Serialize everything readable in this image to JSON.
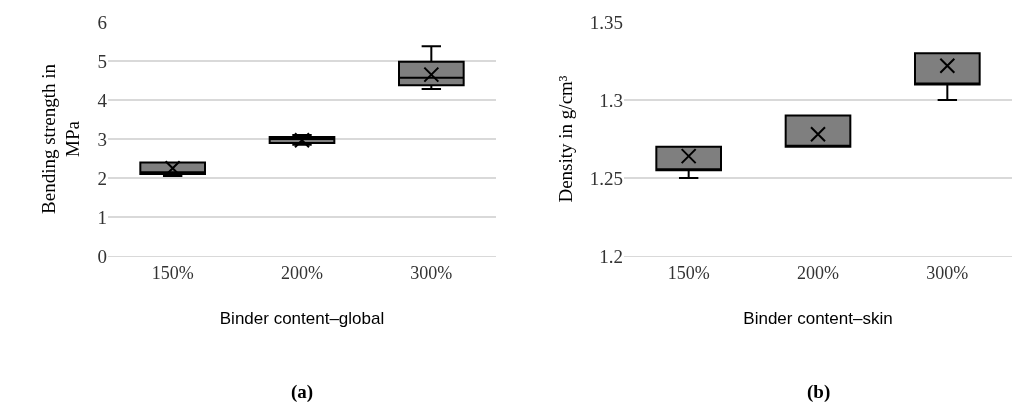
{
  "chart_data": [
    {
      "type": "box",
      "ylabel": "Bending strength in MPa",
      "xlabel": "Binder content–global",
      "categories": [
        "150%",
        "200%",
        "300%"
      ],
      "ylim": [
        0,
        6
      ],
      "yticks": [
        0,
        1,
        2,
        3,
        4,
        5,
        6
      ],
      "grid": "y",
      "color": "#7f7f7f",
      "marker": "cross",
      "boxes": [
        {
          "low": 2.05,
          "q1": 2.1,
          "median": 2.15,
          "q3": 2.4,
          "high": 2.4,
          "mean": 2.25
        },
        {
          "low": 2.85,
          "q1": 2.9,
          "median": 3.0,
          "q3": 3.05,
          "high": 3.1,
          "mean": 2.97
        },
        {
          "low": 4.28,
          "q1": 4.38,
          "median": 4.57,
          "q3": 4.98,
          "high": 5.38,
          "mean": 4.65
        }
      ],
      "annotations": [
        "(a)"
      ]
    },
    {
      "type": "box",
      "ylabel": "Density in g/cm³",
      "xlabel": "Binder content–skin",
      "categories": [
        "150%",
        "200%",
        "300%"
      ],
      "ylim": [
        1.2,
        1.35
      ],
      "yticks": [
        1.2,
        1.25,
        1.3,
        1.35
      ],
      "grid": "y",
      "color": "#7f7f7f",
      "marker": "cross",
      "boxes": [
        {
          "low": 1.25,
          "q1": 1.255,
          "median": 1.255,
          "q3": 1.27,
          "high": 1.27,
          "mean": 1.264
        },
        {
          "low": 1.27,
          "q1": 1.27,
          "median": 1.27,
          "q3": 1.29,
          "high": 1.29,
          "mean": 1.278
        },
        {
          "low": 1.3,
          "q1": 1.31,
          "median": 1.31,
          "q3": 1.33,
          "high": 1.33,
          "mean": 1.322
        }
      ],
      "annotations": [
        "(b)"
      ]
    }
  ]
}
